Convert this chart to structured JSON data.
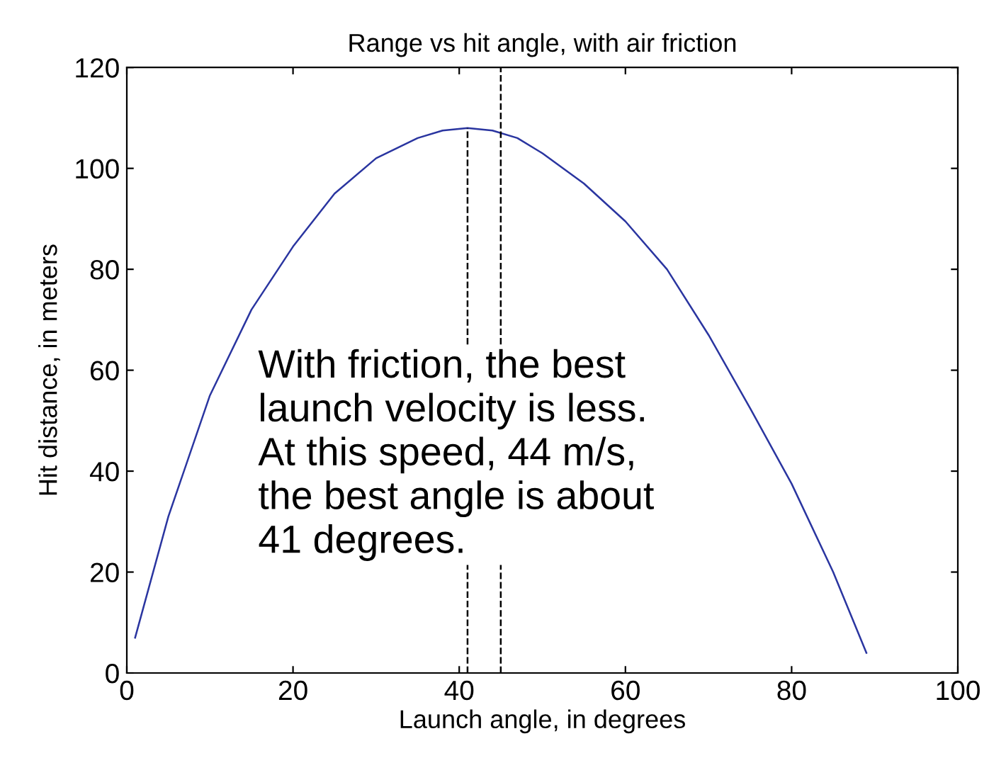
{
  "chart_data": {
    "type": "line",
    "title": "Range vs hit angle, with air friction",
    "xlabel": "Launch angle, in degrees",
    "ylabel": "Hit distance, in meters",
    "series": [
      {
        "color": "#2a35a0",
        "line_style": "solid",
        "x": [
          1,
          5,
          10,
          15,
          20,
          25,
          30,
          35,
          38,
          41,
          44,
          47,
          50,
          55,
          60,
          65,
          70,
          75,
          80,
          85,
          89
        ],
        "values": [
          7,
          31,
          55,
          72,
          84.5,
          95,
          102,
          106,
          107.5,
          108,
          107.5,
          106,
          103,
          97,
          89.5,
          80,
          67,
          52.5,
          37.5,
          20,
          4
        ]
      },
      {
        "type": "line",
        "color": "#000000",
        "line_style": "dashed",
        "x": [
          41,
          41
        ],
        "values": [
          0,
          108
        ]
      }
    ],
    "ref_lines": [
      {
        "axis": "x",
        "value": 45,
        "color": "#000000",
        "line_style": "dashed"
      }
    ],
    "annotations": [
      "With friction, the best\nlaunch velocity is less.\nAt this speed, 44 m/s,\nthe best angle is about\n41 degrees."
    ],
    "xlim": [
      0,
      100
    ],
    "ylim": [
      0,
      120
    ],
    "xticks": [
      0,
      20,
      40,
      60,
      80,
      100
    ],
    "yticks": [
      0,
      20,
      40,
      60,
      80,
      100,
      120
    ],
    "grid": false,
    "legend": false
  }
}
